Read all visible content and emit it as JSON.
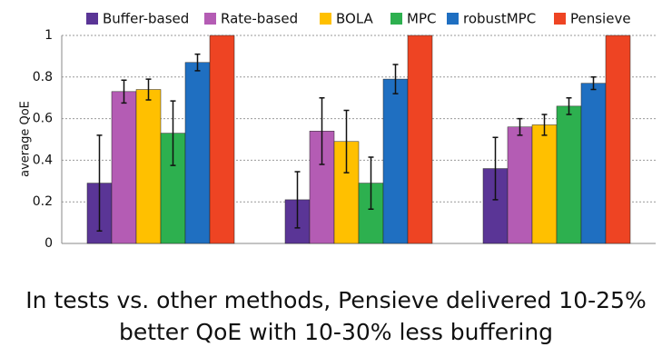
{
  "chart_data": {
    "type": "bar",
    "y_label": "average QoE",
    "categories": [
      null,
      null,
      null
    ],
    "series": [
      {
        "name": "Buffer-based",
        "color": "#5a3596",
        "values": [
          0.29,
          0.21,
          0.36
        ],
        "errors": [
          0.23,
          0.135,
          0.15
        ]
      },
      {
        "name": "Rate-based",
        "color": "#b45cb4",
        "values": [
          0.73,
          0.54,
          0.56
        ],
        "errors": [
          0.055,
          0.16,
          0.04
        ]
      },
      {
        "name": "BOLA",
        "color": "#ffc000",
        "values": [
          0.74,
          0.49,
          0.57
        ],
        "errors": [
          0.05,
          0.15,
          0.05
        ]
      },
      {
        "name": "MPC",
        "color": "#2db04f",
        "values": [
          0.53,
          0.29,
          0.66
        ],
        "errors": [
          0.155,
          0.125,
          0.04
        ]
      },
      {
        "name": "robustMPC",
        "color": "#1f6fc1",
        "values": [
          0.87,
          0.79,
          0.77
        ],
        "errors": [
          0.04,
          0.07,
          0.03
        ]
      },
      {
        "name": "Pensieve",
        "color": "#ee4423",
        "values": [
          1,
          1,
          1
        ],
        "errors": [
          null,
          null,
          null
        ]
      }
    ],
    "ylim": [
      0,
      1
    ],
    "yticks": [
      0,
      0.2,
      0.4,
      0.6,
      0.8,
      1
    ],
    "grid": true,
    "annotations": [
      "In tests vs. other methods, Pensieve delivered 10-25%",
      "better QoE with 10-30% less buffering"
    ]
  }
}
